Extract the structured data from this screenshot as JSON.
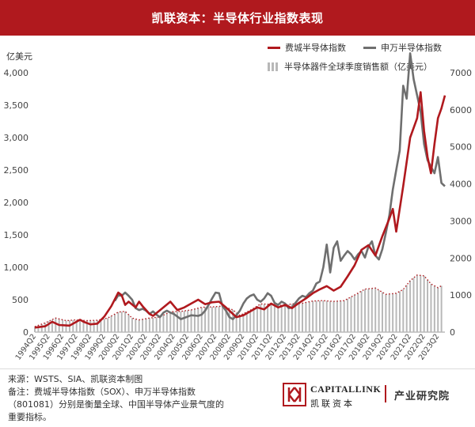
{
  "header": {
    "title": "凯联资本：半导体行业指数表现"
  },
  "colors": {
    "header_bg": "#b0191e",
    "sox": "#b0191e",
    "sw": "#6f6f6f",
    "sales": "#b8b8b8"
  },
  "chart_data": {
    "type": "line",
    "title": "",
    "left_axis": {
      "unit": "亿美元",
      "min": 0,
      "max": 4000,
      "ticks": [
        "0",
        "500",
        "1,000",
        "1,500",
        "2,000",
        "2,500",
        "3,000",
        "3,500",
        "4,000"
      ],
      "tick_values": [
        0,
        500,
        1000,
        1500,
        2000,
        2500,
        3000,
        3500,
        4000
      ]
    },
    "right_axis": {
      "min": 0,
      "max": 7000,
      "ticks": [
        "0",
        "1000",
        "2000",
        "3000",
        "4000",
        "5000",
        "6000",
        "7000"
      ],
      "tick_values": [
        0,
        1000,
        2000,
        3000,
        4000,
        5000,
        6000,
        7000
      ]
    },
    "x_start": 1994.25,
    "x_end": 2023.75,
    "x_labels": [
      "1994Q2",
      "1995Q2",
      "1996Q2",
      "1997Q2",
      "1998Q2",
      "1999Q2",
      "2000Q2",
      "2001Q2",
      "2002Q2",
      "2003Q2",
      "2004Q2",
      "2005Q2",
      "2006Q2",
      "2007Q2",
      "2008Q2",
      "2009Q2",
      "2010Q2",
      "2011Q2",
      "2012Q2",
      "2013Q2",
      "2014Q2",
      "2015Q2",
      "2016Q2",
      "2017Q2",
      "2018Q2",
      "2019Q2",
      "2020Q2",
      "2021Q2",
      "2022Q2",
      "2023Q2"
    ],
    "legend_position": "top-right",
    "series": [
      {
        "name": "费城半导体指数",
        "axis": "left",
        "style": "line",
        "points": [
          [
            1994.25,
            70
          ],
          [
            1995.0,
            90
          ],
          [
            1995.5,
            160
          ],
          [
            1996.0,
            110
          ],
          [
            1996.75,
            100
          ],
          [
            1997.5,
            190
          ],
          [
            1997.75,
            160
          ],
          [
            1998.25,
            120
          ],
          [
            1998.75,
            130
          ],
          [
            1999.25,
            240
          ],
          [
            1999.75,
            400
          ],
          [
            2000.25,
            610
          ],
          [
            2000.5,
            570
          ],
          [
            2000.75,
            420
          ],
          [
            2001.0,
            470
          ],
          [
            2001.5,
            380
          ],
          [
            2001.75,
            470
          ],
          [
            2002.0,
            400
          ],
          [
            2002.5,
            280
          ],
          [
            2002.75,
            250
          ],
          [
            2003.5,
            380
          ],
          [
            2004.0,
            470
          ],
          [
            2004.5,
            340
          ],
          [
            2005.0,
            380
          ],
          [
            2005.5,
            440
          ],
          [
            2006.0,
            500
          ],
          [
            2006.5,
            430
          ],
          [
            2007.0,
            460
          ],
          [
            2007.5,
            470
          ],
          [
            2008.0,
            380
          ],
          [
            2008.5,
            280
          ],
          [
            2008.75,
            230
          ],
          [
            2009.25,
            260
          ],
          [
            2009.75,
            320
          ],
          [
            2010.25,
            380
          ],
          [
            2010.75,
            350
          ],
          [
            2011.25,
            440
          ],
          [
            2011.75,
            380
          ],
          [
            2012.25,
            420
          ],
          [
            2012.75,
            370
          ],
          [
            2013.25,
            450
          ],
          [
            2013.75,
            520
          ],
          [
            2014.25,
            600
          ],
          [
            2014.75,
            660
          ],
          [
            2015.25,
            710
          ],
          [
            2015.75,
            640
          ],
          [
            2016.25,
            700
          ],
          [
            2016.75,
            860
          ],
          [
            2017.25,
            1030
          ],
          [
            2017.75,
            1270
          ],
          [
            2018.25,
            1340
          ],
          [
            2018.75,
            1180
          ],
          [
            2019.25,
            1480
          ],
          [
            2019.75,
            1750
          ],
          [
            2020.0,
            1900
          ],
          [
            2020.25,
            1550
          ],
          [
            2020.75,
            2250
          ],
          [
            2021.25,
            3000
          ],
          [
            2021.75,
            3300
          ],
          [
            2022.0,
            3700
          ],
          [
            2022.25,
            3100
          ],
          [
            2022.5,
            2700
          ],
          [
            2022.75,
            2450
          ],
          [
            2023.0,
            2900
          ],
          [
            2023.25,
            3300
          ],
          [
            2023.5,
            3450
          ],
          [
            2023.75,
            3650
          ]
        ]
      },
      {
        "name": "申万半导体指数",
        "axis": "left",
        "style": "line",
        "points": [
          [
            2000.0,
            480
          ],
          [
            2000.25,
            570
          ],
          [
            2000.5,
            560
          ],
          [
            2000.75,
            610
          ],
          [
            2001.0,
            560
          ],
          [
            2001.25,
            500
          ],
          [
            2001.5,
            370
          ],
          [
            2001.75,
            340
          ],
          [
            2002.0,
            360
          ],
          [
            2002.25,
            330
          ],
          [
            2002.5,
            280
          ],
          [
            2002.75,
            320
          ],
          [
            2003.0,
            270
          ],
          [
            2003.25,
            230
          ],
          [
            2003.5,
            300
          ],
          [
            2003.75,
            330
          ],
          [
            2004.0,
            300
          ],
          [
            2004.25,
            280
          ],
          [
            2004.5,
            240
          ],
          [
            2004.75,
            200
          ],
          [
            2005.0,
            220
          ],
          [
            2005.5,
            260
          ],
          [
            2006.0,
            250
          ],
          [
            2006.25,
            270
          ],
          [
            2006.5,
            330
          ],
          [
            2006.75,
            420
          ],
          [
            2007.0,
            520
          ],
          [
            2007.25,
            610
          ],
          [
            2007.5,
            600
          ],
          [
            2007.75,
            400
          ],
          [
            2008.0,
            330
          ],
          [
            2008.25,
            230
          ],
          [
            2008.5,
            200
          ],
          [
            2008.75,
            260
          ],
          [
            2009.0,
            330
          ],
          [
            2009.25,
            440
          ],
          [
            2009.5,
            520
          ],
          [
            2009.75,
            560
          ],
          [
            2010.0,
            580
          ],
          [
            2010.25,
            500
          ],
          [
            2010.5,
            470
          ],
          [
            2010.75,
            520
          ],
          [
            2011.0,
            600
          ],
          [
            2011.25,
            560
          ],
          [
            2011.5,
            450
          ],
          [
            2011.75,
            420
          ],
          [
            2012.0,
            470
          ],
          [
            2012.25,
            440
          ],
          [
            2012.5,
            370
          ],
          [
            2012.75,
            380
          ],
          [
            2013.0,
            450
          ],
          [
            2013.25,
            520
          ],
          [
            2013.5,
            560
          ],
          [
            2013.75,
            540
          ],
          [
            2014.0,
            600
          ],
          [
            2014.25,
            640
          ],
          [
            2014.5,
            750
          ],
          [
            2014.75,
            780
          ],
          [
            2015.0,
            1000
          ],
          [
            2015.25,
            1350
          ],
          [
            2015.5,
            920
          ],
          [
            2015.75,
            1300
          ],
          [
            2016.0,
            1400
          ],
          [
            2016.25,
            1100
          ],
          [
            2016.5,
            1180
          ],
          [
            2016.75,
            1250
          ],
          [
            2017.0,
            1200
          ],
          [
            2017.25,
            1120
          ],
          [
            2017.5,
            1200
          ],
          [
            2017.75,
            1250
          ],
          [
            2018.0,
            1150
          ],
          [
            2018.25,
            1320
          ],
          [
            2018.5,
            1400
          ],
          [
            2018.75,
            1180
          ],
          [
            2019.0,
            1120
          ],
          [
            2019.25,
            1280
          ],
          [
            2019.5,
            1530
          ],
          [
            2019.75,
            1800
          ],
          [
            2020.0,
            2200
          ],
          [
            2020.25,
            2500
          ],
          [
            2020.5,
            2800
          ],
          [
            2020.75,
            3800
          ],
          [
            2021.0,
            3600
          ],
          [
            2021.25,
            4300
          ],
          [
            2021.5,
            3900
          ],
          [
            2021.75,
            3650
          ],
          [
            2022.0,
            3400
          ],
          [
            2022.25,
            2900
          ],
          [
            2022.5,
            2650
          ],
          [
            2022.75,
            2550
          ],
          [
            2023.0,
            2450
          ],
          [
            2023.25,
            2700
          ],
          [
            2023.5,
            2300
          ],
          [
            2023.75,
            2250
          ]
        ]
      },
      {
        "name": "半导体器件全球季度销售额（亿美元）",
        "axis": "right",
        "style": "bars",
        "points": [
          [
            1994.25,
            150
          ],
          [
            1995.0,
            250
          ],
          [
            1995.75,
            380
          ],
          [
            1996.5,
            310
          ],
          [
            1997.25,
            330
          ],
          [
            1998.0,
            310
          ],
          [
            1998.75,
            320
          ],
          [
            1999.5,
            380
          ],
          [
            2000.25,
            540
          ],
          [
            2000.75,
            560
          ],
          [
            2001.25,
            380
          ],
          [
            2001.75,
            330
          ],
          [
            2002.5,
            380
          ],
          [
            2003.25,
            410
          ],
          [
            2004.0,
            550
          ],
          [
            2004.75,
            560
          ],
          [
            2005.5,
            600
          ],
          [
            2006.25,
            670
          ],
          [
            2007.0,
            680
          ],
          [
            2007.75,
            700
          ],
          [
            2008.5,
            600
          ],
          [
            2009.0,
            450
          ],
          [
            2009.75,
            590
          ],
          [
            2010.5,
            760
          ],
          [
            2011.25,
            750
          ],
          [
            2012.0,
            720
          ],
          [
            2012.75,
            760
          ],
          [
            2013.5,
            780
          ],
          [
            2014.25,
            840
          ],
          [
            2015.0,
            850
          ],
          [
            2015.75,
            830
          ],
          [
            2016.5,
            850
          ],
          [
            2017.25,
            1000
          ],
          [
            2018.0,
            1160
          ],
          [
            2018.75,
            1190
          ],
          [
            2019.5,
            1020
          ],
          [
            2020.25,
            1050
          ],
          [
            2020.75,
            1150
          ],
          [
            2021.25,
            1390
          ],
          [
            2021.75,
            1540
          ],
          [
            2022.25,
            1520
          ],
          [
            2022.75,
            1300
          ],
          [
            2023.25,
            1200
          ],
          [
            2023.5,
            1250
          ]
        ]
      }
    ]
  },
  "footer": {
    "source": "来源：WSTS、SIA、凯联资本制图",
    "note1": "备注：费城半导体指数（SOX）、申万半导体指数",
    "note2": "（801081）分别是衡量全球、中国半导体产业景气度的",
    "note3": "重要指标。"
  },
  "brand": {
    "en": "CAPITALLINK",
    "cn": "凯联资本",
    "institute": "产业研究院"
  }
}
